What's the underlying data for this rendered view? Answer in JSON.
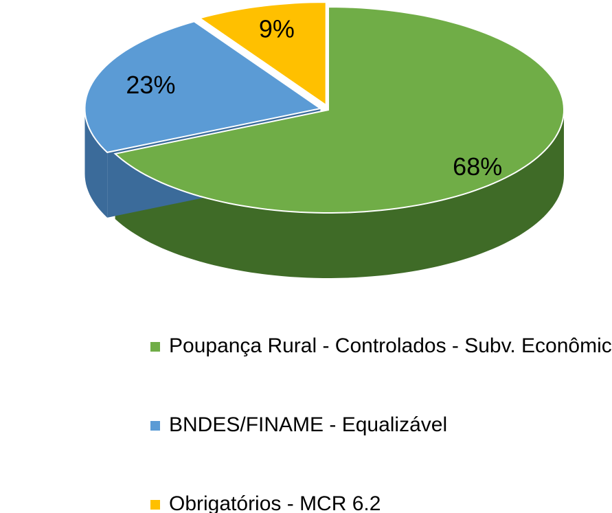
{
  "chart_data": {
    "type": "pie",
    "categories": [
      "Poupança Rural - Controlados - Subv. Econômica",
      "BNDES/FINAME - Equalizável",
      "Obrigatórios - MCR 6.2"
    ],
    "values": [
      68,
      23,
      9
    ],
    "value_labels": [
      "68%",
      "23%",
      "9%"
    ],
    "colors": [
      "#70ad47",
      "#5b9bd5",
      "#ffc000"
    ],
    "side_colors": [
      "#3f6b27",
      "#3b6b9a",
      "#b38600"
    ],
    "legend": "bottom"
  }
}
